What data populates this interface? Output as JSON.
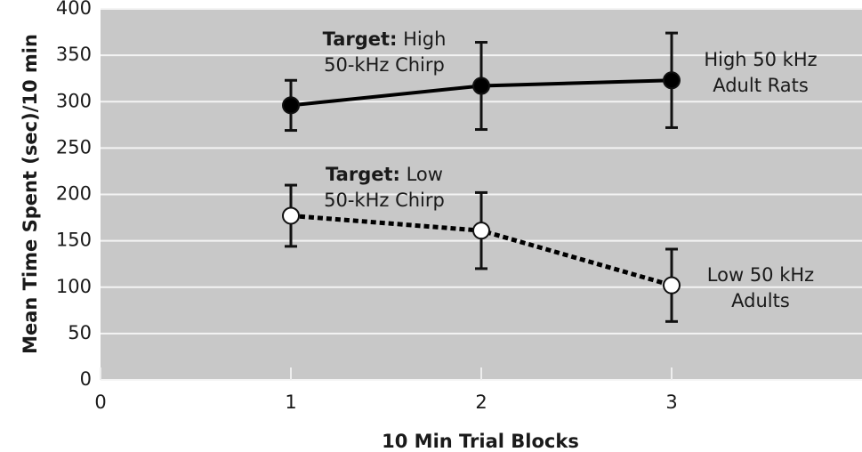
{
  "chart_data": {
    "type": "line",
    "x_label": "10 Min Trial Blocks",
    "y_label": "Mean Time Spent (sec)/10 min",
    "xlim": [
      0,
      4
    ],
    "xticks": [
      0,
      1,
      2,
      3
    ],
    "ylim": [
      0,
      400
    ],
    "yticks": [
      0,
      50,
      100,
      150,
      200,
      250,
      300,
      350,
      400
    ],
    "grid": true,
    "series": [
      {
        "label_lines": [
          "High 50 kHz",
          "Adult Rats"
        ],
        "color": "#000000",
        "style": "solid",
        "marker_fill": "#000000",
        "x": [
          1,
          2,
          3
        ],
        "values": [
          296,
          317,
          323
        ],
        "errors": [
          27,
          47,
          51
        ]
      },
      {
        "label_lines": [
          "Low 50 kHz",
          "Adults"
        ],
        "color": "#000000",
        "style": "dotted",
        "marker_fill": "#ffffff",
        "x": [
          1,
          2,
          3
        ],
        "values": [
          177,
          161,
          102
        ],
        "errors": [
          33,
          41,
          39
        ]
      }
    ],
    "annotations": [
      {
        "lines": [
          {
            "bold": "Target:",
            "text": "High"
          },
          {
            "text": "50-kHz Chirp"
          }
        ]
      },
      {
        "lines": [
          {
            "bold": "Target:",
            "text": "Low"
          },
          {
            "text": "50-kHz Chirp"
          }
        ]
      }
    ]
  }
}
